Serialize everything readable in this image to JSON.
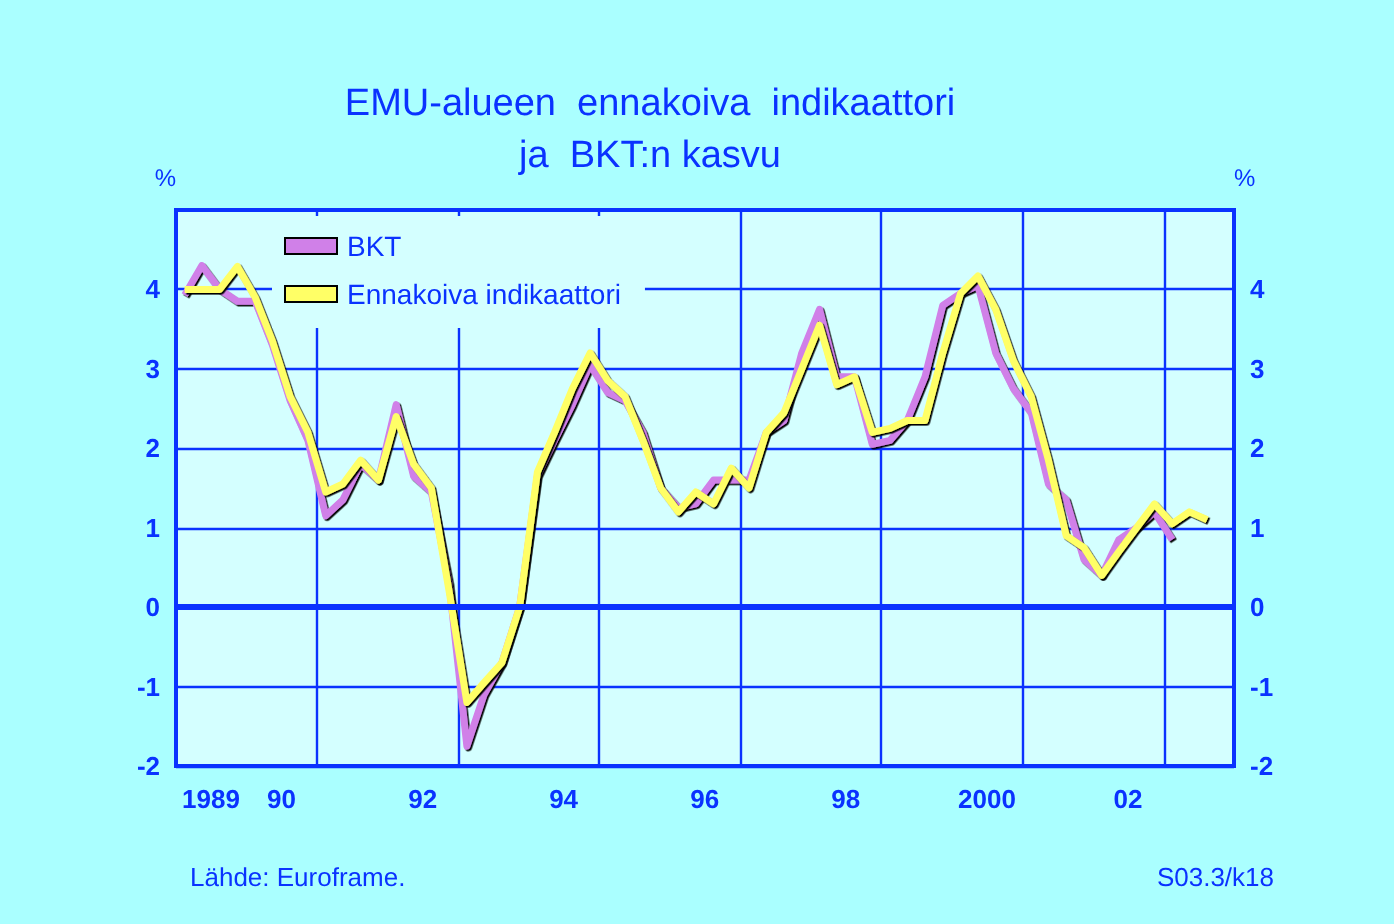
{
  "chart_data": {
    "type": "line",
    "title": "EMU-alueen  ennakoiva  indikaattori\nja  BKT:n kasvu",
    "ylabel": "%",
    "y2label": "%",
    "x": [
      "1989-02-15",
      "1989-05-15",
      "1989-08-15",
      "1989-11-15",
      "1990-02-15",
      "1990-05-15",
      "1990-08-15",
      "1990-11-15",
      "1991-02-15",
      "1991-05-15",
      "1991-08-15",
      "1991-11-15",
      "1992-02-15",
      "1992-05-15",
      "1992-08-15",
      "1992-11-15",
      "1993-02-15",
      "1993-05-15",
      "1993-08-15",
      "1993-11-15",
      "1994-02-15",
      "1994-05-15",
      "1994-08-15",
      "1994-11-15",
      "1995-02-15",
      "1995-05-15",
      "1995-08-15",
      "1995-11-15",
      "1996-02-15",
      "1996-05-15",
      "1996-08-15",
      "1996-11-15",
      "1997-02-15",
      "1997-05-15",
      "1997-08-15",
      "1997-11-15",
      "1998-02-15",
      "1998-05-15",
      "1998-08-15",
      "1998-11-15",
      "1999-02-15",
      "1999-05-15",
      "1999-08-15",
      "1999-11-15",
      "2000-02-15",
      "2000-05-15",
      "2000-08-15",
      "2000-11-15",
      "2001-02-15",
      "2001-05-15",
      "2001-08-15",
      "2001-11-15",
      "2002-02-15",
      "2002-05-15",
      "2002-08-15",
      "2002-11-15",
      "2003-02-15",
      "2003-05-15",
      "2003-08-15"
    ],
    "series": [
      {
        "name": "BKT",
        "color": "#d080e8",
        "values": [
          3.93,
          4.3,
          4.0,
          3.85,
          3.85,
          3.3,
          2.6,
          2.1,
          1.15,
          1.35,
          1.8,
          1.6,
          2.55,
          1.65,
          1.45,
          0.3,
          -1.75,
          -1.1,
          -0.7,
          0.0,
          1.65,
          2.1,
          2.55,
          3.05,
          2.7,
          2.6,
          2.2,
          1.5,
          1.25,
          1.3,
          1.6,
          1.6,
          1.6,
          2.2,
          2.35,
          3.2,
          3.75,
          2.9,
          2.9,
          2.05,
          2.1,
          2.35,
          2.9,
          3.8,
          3.95,
          4.05,
          3.2,
          2.75,
          2.45,
          1.55,
          1.35,
          0.6,
          0.4,
          0.85,
          1.0,
          1.2,
          0.85,
          null,
          null
        ]
      },
      {
        "name": "Ennakoiva indikaattori",
        "color": "#ffff66",
        "values": [
          4.0,
          4.0,
          4.0,
          4.29,
          3.9,
          3.35,
          2.65,
          2.2,
          1.45,
          1.55,
          1.85,
          1.6,
          2.4,
          1.8,
          1.5,
          0.2,
          -1.2,
          -0.95,
          -0.7,
          0.0,
          1.7,
          2.2,
          2.75,
          3.2,
          2.85,
          2.65,
          2.1,
          1.5,
          1.2,
          1.45,
          1.3,
          1.75,
          1.5,
          2.2,
          2.45,
          3.0,
          3.55,
          2.8,
          2.9,
          2.2,
          2.25,
          2.35,
          2.35,
          3.2,
          3.95,
          4.17,
          3.75,
          3.1,
          2.65,
          1.85,
          0.9,
          0.75,
          0.4,
          0.7,
          1.0,
          1.3,
          1.05,
          1.2,
          1.1
        ]
      }
    ],
    "xlim": [
      "1989-01-01",
      "2004-01-01"
    ],
    "xticks": [
      {
        "value": "1989-07-01",
        "label": "1989"
      },
      {
        "value": "1990-07-01",
        "label": "90"
      },
      {
        "value": "1991-01-01",
        "label": null
      },
      {
        "value": "1992-07-01",
        "label": "92"
      },
      {
        "value": "1993-01-01",
        "label": null
      },
      {
        "value": "1994-07-01",
        "label": "94"
      },
      {
        "value": "1995-01-01",
        "label": null
      },
      {
        "value": "1996-07-01",
        "label": "96"
      },
      {
        "value": "1997-01-01",
        "label": null
      },
      {
        "value": "1998-07-01",
        "label": "98"
      },
      {
        "value": "1999-01-01",
        "label": null
      },
      {
        "value": "2000-07-01",
        "label": "2000"
      },
      {
        "value": "2001-01-01",
        "label": null
      },
      {
        "value": "2002-07-01",
        "label": "02"
      },
      {
        "value": "2003-01-01",
        "label": null
      }
    ],
    "ylim": [
      -2,
      5
    ],
    "yticks": [
      -2,
      -1,
      0,
      1,
      2,
      3,
      4
    ],
    "y2lim": [
      -2,
      5
    ],
    "y2ticks": [
      -2,
      -1,
      0,
      1,
      2,
      3,
      4
    ],
    "ref_lines": [
      {
        "axis": "y",
        "value": 0,
        "label": null
      }
    ],
    "grid": true,
    "legend": "top left",
    "marker": "none",
    "line_style": "solid",
    "annotations": [
      "Lähde: Euroframe.",
      "S03.3/k18"
    ]
  }
}
